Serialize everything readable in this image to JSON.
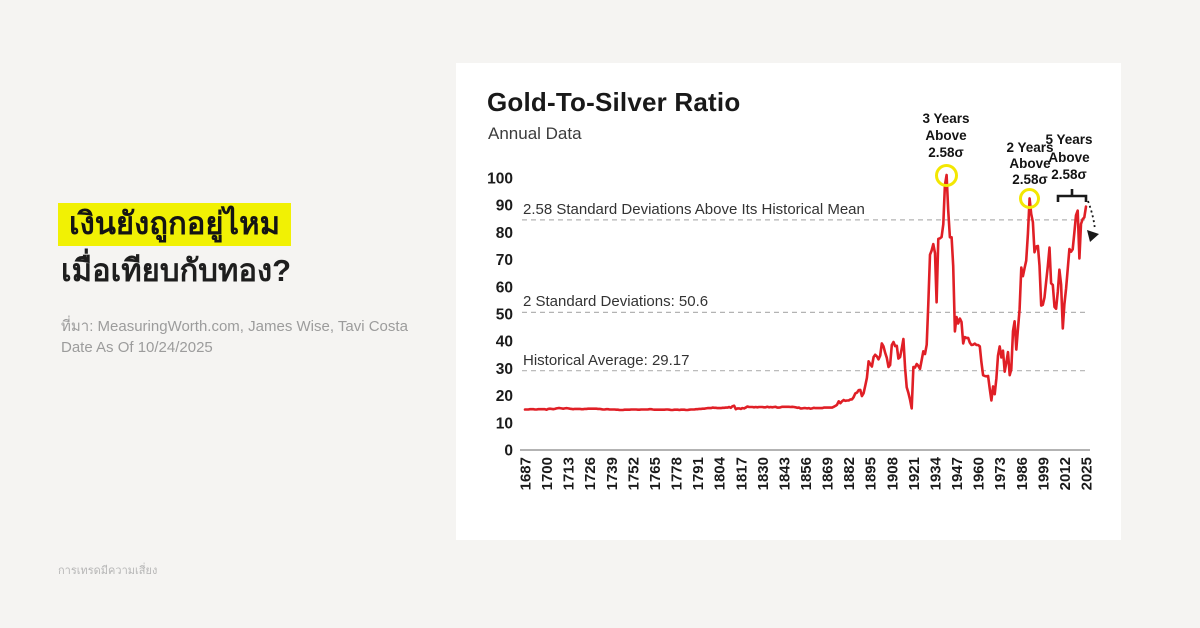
{
  "page": {
    "headline_line1": "เงินยังถูกอยู่ไหม",
    "headline_line2": "เมื่อเทียบกับทอง?",
    "source_line1": "ที่มา: MeasuringWorth.com, James Wise, Tavi Costa",
    "source_line2": "Date As Of 10/24/2025",
    "disclaimer": "การเทรดมีความเสี่ยง",
    "colors": {
      "background": "#f5f4f2",
      "card": "#ffffff",
      "headline_highlight": "#f1f104",
      "line_red": "#e01f26",
      "circle_yellow": "#f3e702"
    }
  },
  "chart": {
    "title": "Gold-To-Silver Ratio",
    "subtitle": "Annual Data",
    "reference_labels": {
      "sigma258": "2.58 Standard Deviations Above Its Historical Mean",
      "sigma2": "2 Standard Deviations: 50.6",
      "mean": "Historical Average: 29.17"
    },
    "annotations": {
      "peak_1940s": "3 Years\nAbove\n2.58σ",
      "peak_1990s": "2 Years\nAbove\n2.58σ",
      "peak_2020s": "5 Years\nAbove\n2.58σ"
    }
  },
  "chart_data": {
    "type": "line",
    "title": "Gold-To-Silver Ratio",
    "subtitle": "Annual Data",
    "xlabel": "",
    "ylabel": "",
    "ylim": [
      0,
      100
    ],
    "y_tick_step": 10,
    "grid": "dashed horizontal reference lines only",
    "legend": "none",
    "line_color": "#e01f26",
    "x_start_year": 1687,
    "x_end_year": 2025,
    "x_tick_years": [
      1687,
      1700,
      1713,
      1726,
      1739,
      1752,
      1765,
      1778,
      1791,
      1804,
      1817,
      1830,
      1843,
      1856,
      1869,
      1882,
      1895,
      1908,
      1921,
      1934,
      1947,
      1960,
      1973,
      1986,
      1999,
      2012,
      2025
    ],
    "reference_lines": [
      {
        "label": "2.58 Standard Deviations Above Its Historical Mean",
        "value": 84.6
      },
      {
        "label": "2 Standard Deviations: 50.6",
        "value": 50.6
      },
      {
        "label": "Historical Average: 29.17",
        "value": 29.17
      }
    ],
    "highlight_circles": [
      {
        "year": 1941,
        "value": 101.1,
        "note": "3 Years Above 2.58σ"
      },
      {
        "year": 1991,
        "value": 92.5,
        "note": "2 Years Above 2.58σ"
      }
    ],
    "values_start_year": 1687,
    "values": [
      14.9,
      14.9,
      14.9,
      15.0,
      15.0,
      15.0,
      14.9,
      14.9,
      15.0,
      15.0,
      15.0,
      15.0,
      15.0,
      14.8,
      15.1,
      15.2,
      15.1,
      15.0,
      15.1,
      15.3,
      15.4,
      15.4,
      15.3,
      15.2,
      15.3,
      15.4,
      15.3,
      15.2,
      15.1,
      15.0,
      15.1,
      15.1,
      15.1,
      15.1,
      15.0,
      15.0,
      15.1,
      15.1,
      15.2,
      15.2,
      15.2,
      15.2,
      15.2,
      15.2,
      15.1,
      15.1,
      15.0,
      14.9,
      14.9,
      15.0,
      15.0,
      14.9,
      14.9,
      14.9,
      14.9,
      14.8,
      14.8,
      14.7,
      14.7,
      14.7,
      14.8,
      14.8,
      14.8,
      14.8,
      14.9,
      14.9,
      14.9,
      14.9,
      14.8,
      14.8,
      14.9,
      14.9,
      14.9,
      14.9,
      14.9,
      15.0,
      15.0,
      14.9,
      14.8,
      14.8,
      14.8,
      14.8,
      14.8,
      14.8,
      14.8,
      14.9,
      14.9,
      14.8,
      14.7,
      14.7,
      14.8,
      14.8,
      14.8,
      14.7,
      14.8,
      14.8,
      14.8,
      14.7,
      14.7,
      14.8,
      14.9,
      14.9,
      14.9,
      15.0,
      15.0,
      15.1,
      15.1,
      15.2,
      15.2,
      15.3,
      15.4,
      15.4,
      15.4,
      15.6,
      15.5,
      15.5,
      15.4,
      15.4,
      15.4,
      15.5,
      15.5,
      15.6,
      15.6,
      15.8,
      15.5,
      16.1,
      16.3,
      15.0,
      15.3,
      15.3,
      15.1,
      15.4,
      15.3,
      15.6,
      16.0,
      15.8,
      15.8,
      15.8,
      15.7,
      15.8,
      15.7,
      15.8,
      15.8,
      15.8,
      15.7,
      15.7,
      15.9,
      15.7,
      15.8,
      15.7,
      15.8,
      15.9,
      15.6,
      15.6,
      15.7,
      15.9,
      15.9,
      15.9,
      15.9,
      15.9,
      15.8,
      15.9,
      15.8,
      15.7,
      15.5,
      15.6,
      15.3,
      15.3,
      15.4,
      15.4,
      15.3,
      15.4,
      15.2,
      15.3,
      15.5,
      15.4,
      15.4,
      15.4,
      15.4,
      15.4,
      15.6,
      15.6,
      15.6,
      15.6,
      15.6,
      15.6,
      15.9,
      16.2,
      16.6,
      17.9,
      17.2,
      17.9,
      18.4,
      18.1,
      18.2,
      18.2,
      18.6,
      18.6,
      19.4,
      20.8,
      21.1,
      22.0,
      22.1,
      19.8,
      20.9,
      23.7,
      26.5,
      32.6,
      31.6,
      30.7,
      34.2,
      35.0,
      34.4,
      33.3,
      34.7,
      39.2,
      38.1,
      35.7,
      33.9,
      30.5,
      31.2,
      38.6,
      39.7,
      38.2,
      38.3,
      33.6,
      34.2,
      37.4,
      40.8,
      30.1,
      23.1,
      21.0,
      18.4,
      15.3,
      30.5,
      30.3,
      31.6,
      30.9,
      29.8,
      33.1,
      36.3,
      35.3,
      38.7,
      53.7,
      71.8,
      73.3,
      75.7,
      72.4,
      54.3,
      77.6,
      77.8,
      78.3,
      83.0,
      97.3,
      101.1,
      88.2,
      78.2,
      78.2,
      67.7,
      43.6,
      48.9,
      46.5,
      48.3,
      47.1,
      39.2,
      41.5,
      41.2,
      41.2,
      39.5,
      38.6,
      38.7,
      39.1,
      38.6,
      38.6,
      38.1,
      32.3,
      27.5,
      27.2,
      27.1,
      27.2,
      22.6,
      18.2,
      23.4,
      20.5,
      26.4,
      34.7,
      38.1,
      34.0,
      36.5,
      28.8,
      32.1,
      36.0,
      27.5,
      29.7,
      43.7,
      47.3,
      36.9,
      44.3,
      51.8,
      67.1,
      63.9,
      66.9,
      69.6,
      79.4,
      92.5,
      86.8,
      83.7,
      72.7,
      74.8,
      75.0,
      67.8,
      53.1,
      53.4,
      56.1,
      62.1,
      67.5,
      74.4,
      61.3,
      60.7,
      52.6,
      51.9,
      58.2,
      66.3,
      60.8,
      44.7,
      53.6,
      59.4,
      66.4,
      73.9,
      72.9,
      73.8,
      80.1,
      86.3,
      88.0,
      70.4,
      83.1,
      84.9,
      85.5,
      89.5
    ]
  }
}
